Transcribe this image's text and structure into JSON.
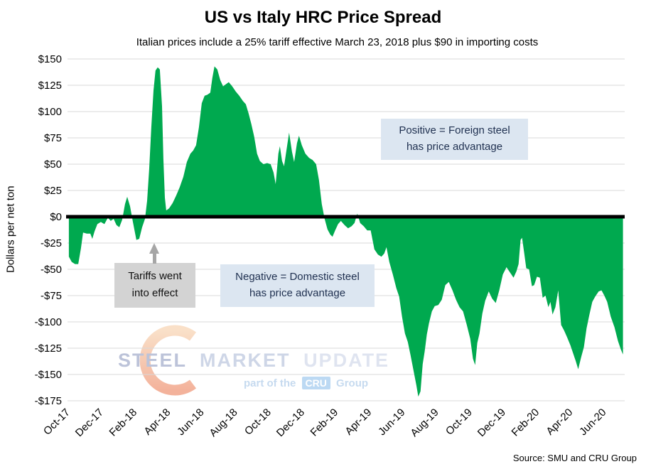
{
  "title": "US vs Italy HRC Price Spread",
  "subtitle": "Italian prices include a 25% tariff effective March 23, 2018 plus $90 in importing costs",
  "source": "Source: SMU and CRU Group",
  "y_axis": {
    "title": "Dollars per net ton"
  },
  "annotations": {
    "positive": {
      "line1": "Positive = Foreign steel",
      "line2": "has price advantage"
    },
    "negative": {
      "line1": "Negative = Domestic steel",
      "line2": "has price advantage"
    },
    "tariff": {
      "line1": "Tariffs went",
      "line2": "into effect"
    }
  },
  "watermark": {
    "word1": "STEEL",
    "word2": "MARKET",
    "word3": "UPDATE",
    "tagline_prefix": "part of the",
    "tagline_brand": "CRU",
    "tagline_suffix": "Group"
  },
  "colors": {
    "area_green": "#00a94f",
    "zero_line": "#000000",
    "gridline": "#d9d9d9",
    "annotation_blue": "#dce6f1",
    "annotation_gray": "#d3d3d3",
    "arrow_gray": "#a6a6a6"
  },
  "chart_data": {
    "type": "area",
    "title": "US vs Italy HRC Price Spread",
    "ylabel": "Dollars per net ton",
    "x_unit": "months since Oct-2017 (fractional; weekly series)",
    "x_max": 33.2,
    "ylim": [
      -175,
      150
    ],
    "grid": true,
    "y_tick_values": [
      150,
      125,
      100,
      75,
      50,
      25,
      0,
      -25,
      -50,
      -75,
      -100,
      -125,
      -150,
      -175
    ],
    "y_tick_labels": [
      "$150",
      "$125",
      "$100",
      "$75",
      "$50",
      "$25",
      "$0",
      "-$25",
      "-$50",
      "-$75",
      "-$100",
      "-$125",
      "-$150",
      "-$175"
    ],
    "x_tick_positions": [
      0,
      2,
      4,
      6,
      8,
      10,
      12,
      14,
      16,
      18,
      20,
      22,
      24,
      26,
      28,
      30,
      32
    ],
    "x_tick_labels": [
      "Oct-17",
      "Dec-17",
      "Feb-18",
      "Apr-18",
      "Jun-18",
      "Aug-18",
      "Oct-18",
      "Dec-18",
      "Feb-19",
      "Apr-19",
      "Jun-19",
      "Aug-19",
      "Oct-19",
      "Dec-19",
      "Feb-20",
      "Apr-20",
      "Jun-20"
    ],
    "points": [
      [
        0.08,
        -38
      ],
      [
        0.25,
        -43
      ],
      [
        0.45,
        -45
      ],
      [
        0.64,
        -45
      ],
      [
        0.8,
        -30
      ],
      [
        0.93,
        -15
      ],
      [
        1.15,
        -16
      ],
      [
        1.36,
        -16
      ],
      [
        1.48,
        -21
      ],
      [
        1.61,
        -14
      ],
      [
        1.78,
        -7
      ],
      [
        1.99,
        -5
      ],
      [
        2.2,
        -7
      ],
      [
        2.41,
        -1
      ],
      [
        2.58,
        -4
      ],
      [
        2.75,
        -2
      ],
      [
        2.92,
        -8
      ],
      [
        3.09,
        -10
      ],
      [
        3.26,
        -3
      ],
      [
        3.43,
        12
      ],
      [
        3.56,
        19
      ],
      [
        3.73,
        10
      ],
      [
        3.9,
        -5
      ],
      [
        4.11,
        -22
      ],
      [
        4.28,
        -21
      ],
      [
        4.45,
        -10
      ],
      [
        4.62,
        -2
      ],
      [
        4.75,
        15
      ],
      [
        4.87,
        45
      ],
      [
        5.0,
        85
      ],
      [
        5.13,
        120
      ],
      [
        5.25,
        139
      ],
      [
        5.38,
        142
      ],
      [
        5.51,
        140
      ],
      [
        5.64,
        105
      ],
      [
        5.72,
        55
      ],
      [
        5.81,
        18
      ],
      [
        5.89,
        6
      ],
      [
        6.06,
        8
      ],
      [
        6.27,
        13
      ],
      [
        6.48,
        20
      ],
      [
        6.69,
        28
      ],
      [
        6.91,
        38
      ],
      [
        7.12,
        52
      ],
      [
        7.33,
        60
      ],
      [
        7.5,
        63
      ],
      [
        7.67,
        68
      ],
      [
        7.84,
        85
      ],
      [
        8.01,
        108
      ],
      [
        8.18,
        115
      ],
      [
        8.35,
        116
      ],
      [
        8.52,
        118
      ],
      [
        8.64,
        132
      ],
      [
        8.77,
        143
      ],
      [
        8.94,
        140
      ],
      [
        9.11,
        130
      ],
      [
        9.28,
        124
      ],
      [
        9.45,
        126
      ],
      [
        9.62,
        128
      ],
      [
        9.83,
        124
      ],
      [
        10.04,
        119
      ],
      [
        10.25,
        115
      ],
      [
        10.47,
        110
      ],
      [
        10.64,
        107
      ],
      [
        10.81,
        98
      ],
      [
        10.97,
        88
      ],
      [
        11.14,
        76
      ],
      [
        11.31,
        60
      ],
      [
        11.48,
        53
      ],
      [
        11.69,
        50
      ],
      [
        11.91,
        51
      ],
      [
        12.12,
        50
      ],
      [
        12.29,
        42
      ],
      [
        12.42,
        31
      ],
      [
        12.58,
        60
      ],
      [
        12.67,
        67
      ],
      [
        12.8,
        53
      ],
      [
        12.92,
        48
      ],
      [
        13.09,
        66
      ],
      [
        13.22,
        80
      ],
      [
        13.39,
        62
      ],
      [
        13.52,
        52
      ],
      [
        13.69,
        70
      ],
      [
        13.81,
        77
      ],
      [
        13.98,
        68
      ],
      [
        14.19,
        60
      ],
      [
        14.41,
        56
      ],
      [
        14.62,
        54
      ],
      [
        14.83,
        50
      ],
      [
        15.0,
        35
      ],
      [
        15.17,
        12
      ],
      [
        15.34,
        -2
      ],
      [
        15.51,
        -12
      ],
      [
        15.68,
        -17
      ],
      [
        15.81,
        -19
      ],
      [
        15.97,
        -13
      ],
      [
        16.14,
        -7
      ],
      [
        16.31,
        -4
      ],
      [
        16.53,
        -8
      ],
      [
        16.74,
        -11
      ],
      [
        16.95,
        -9
      ],
      [
        17.12,
        -6
      ],
      [
        17.29,
        3
      ],
      [
        17.46,
        -6
      ],
      [
        17.67,
        -9
      ],
      [
        17.88,
        -13
      ],
      [
        18.09,
        -13
      ],
      [
        18.31,
        -31
      ],
      [
        18.52,
        -36
      ],
      [
        18.73,
        -38
      ],
      [
        18.9,
        -35
      ],
      [
        19.03,
        -29
      ],
      [
        19.2,
        -43
      ],
      [
        19.41,
        -55
      ],
      [
        19.62,
        -68
      ],
      [
        19.79,
        -76
      ],
      [
        19.96,
        -95
      ],
      [
        20.13,
        -111
      ],
      [
        20.3,
        -119
      ],
      [
        20.47,
        -132
      ],
      [
        20.64,
        -146
      ],
      [
        20.81,
        -160
      ],
      [
        20.93,
        -171
      ],
      [
        21.06,
        -166
      ],
      [
        21.19,
        -140
      ],
      [
        21.31,
        -128
      ],
      [
        21.44,
        -112
      ],
      [
        21.57,
        -101
      ],
      [
        21.74,
        -90
      ],
      [
        21.91,
        -85
      ],
      [
        22.12,
        -84
      ],
      [
        22.33,
        -79
      ],
      [
        22.54,
        -65
      ],
      [
        22.75,
        -62
      ],
      [
        22.97,
        -70
      ],
      [
        23.18,
        -79
      ],
      [
        23.39,
        -86
      ],
      [
        23.6,
        -90
      ],
      [
        23.81,
        -102
      ],
      [
        24.03,
        -116
      ],
      [
        24.19,
        -135
      ],
      [
        24.32,
        -141
      ],
      [
        24.45,
        -120
      ],
      [
        24.58,
        -111
      ],
      [
        24.75,
        -92
      ],
      [
        24.92,
        -80
      ],
      [
        25.13,
        -71
      ],
      [
        25.34,
        -78
      ],
      [
        25.55,
        -82
      ],
      [
        25.76,
        -70
      ],
      [
        25.97,
        -55
      ],
      [
        26.19,
        -48
      ],
      [
        26.4,
        -53
      ],
      [
        26.61,
        -58
      ],
      [
        26.78,
        -52
      ],
      [
        26.91,
        -45
      ],
      [
        27.03,
        -22
      ],
      [
        27.12,
        -20
      ],
      [
        27.25,
        -35
      ],
      [
        27.37,
        -49
      ],
      [
        27.54,
        -50
      ],
      [
        27.71,
        -66
      ],
      [
        27.84,
        -65
      ],
      [
        28.01,
        -57
      ],
      [
        28.18,
        -58
      ],
      [
        28.35,
        -77
      ],
      [
        28.52,
        -75
      ],
      [
        28.69,
        -86
      ],
      [
        28.81,
        -81
      ],
      [
        28.94,
        -93
      ],
      [
        29.11,
        -86
      ],
      [
        29.28,
        -70
      ],
      [
        29.45,
        -103
      ],
      [
        29.62,
        -108
      ],
      [
        29.79,
        -114
      ],
      [
        30.0,
        -122
      ],
      [
        30.17,
        -130
      ],
      [
        30.34,
        -138
      ],
      [
        30.47,
        -145
      ],
      [
        30.64,
        -134
      ],
      [
        30.81,
        -124
      ],
      [
        30.97,
        -106
      ],
      [
        31.14,
        -93
      ],
      [
        31.31,
        -81
      ],
      [
        31.48,
        -76
      ],
      [
        31.69,
        -71
      ],
      [
        31.86,
        -70
      ],
      [
        32.03,
        -75
      ],
      [
        32.2,
        -81
      ],
      [
        32.41,
        -95
      ],
      [
        32.63,
        -105
      ],
      [
        32.84,
        -118
      ],
      [
        33.01,
        -126
      ],
      [
        33.14,
        -131
      ]
    ]
  }
}
